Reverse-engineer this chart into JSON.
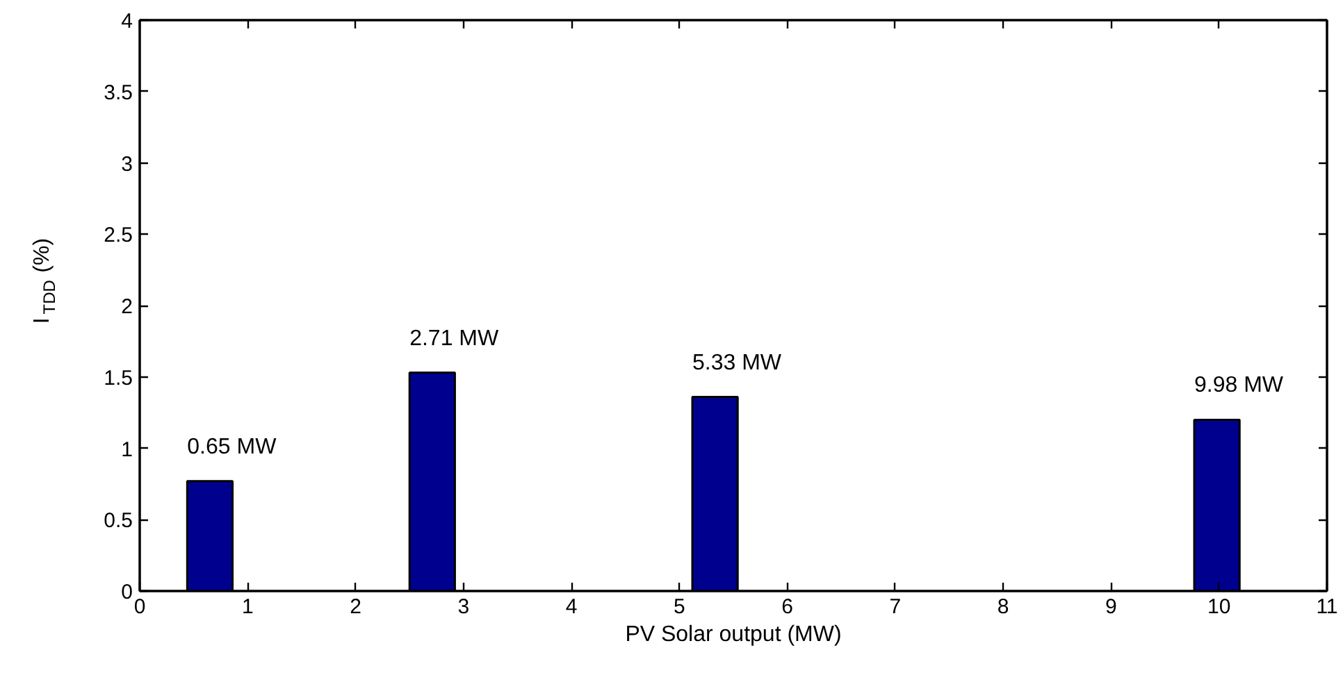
{
  "chart_data": {
    "type": "bar",
    "xlabel": "PV Solar output (MW)",
    "ylabel": "I$_{TDD}$ (%)",
    "x": [
      0.65,
      2.71,
      5.33,
      9.98
    ],
    "values": [
      0.77,
      1.53,
      1.36,
      1.2
    ],
    "color": "#00008f",
    "xlim": [
      0,
      11
    ],
    "xticks": [
      0,
      1,
      2,
      3,
      4,
      5,
      6,
      7,
      8,
      9,
      10,
      11
    ],
    "ylim": [
      0,
      4
    ],
    "yticks": [
      0,
      0.5,
      1,
      1.5,
      2,
      2.5,
      3,
      3.5,
      4
    ],
    "grid": false,
    "annotations": [
      {
        "text": "0.65 MW",
        "x": 0.65,
        "y": 0.77
      },
      {
        "text": "2.71 MW",
        "x": 2.71,
        "y": 1.53
      },
      {
        "text": "5.33 MW",
        "x": 5.33,
        "y": 1.36
      },
      {
        "text": "9.98 MW",
        "x": 9.98,
        "y": 1.2
      }
    ]
  }
}
